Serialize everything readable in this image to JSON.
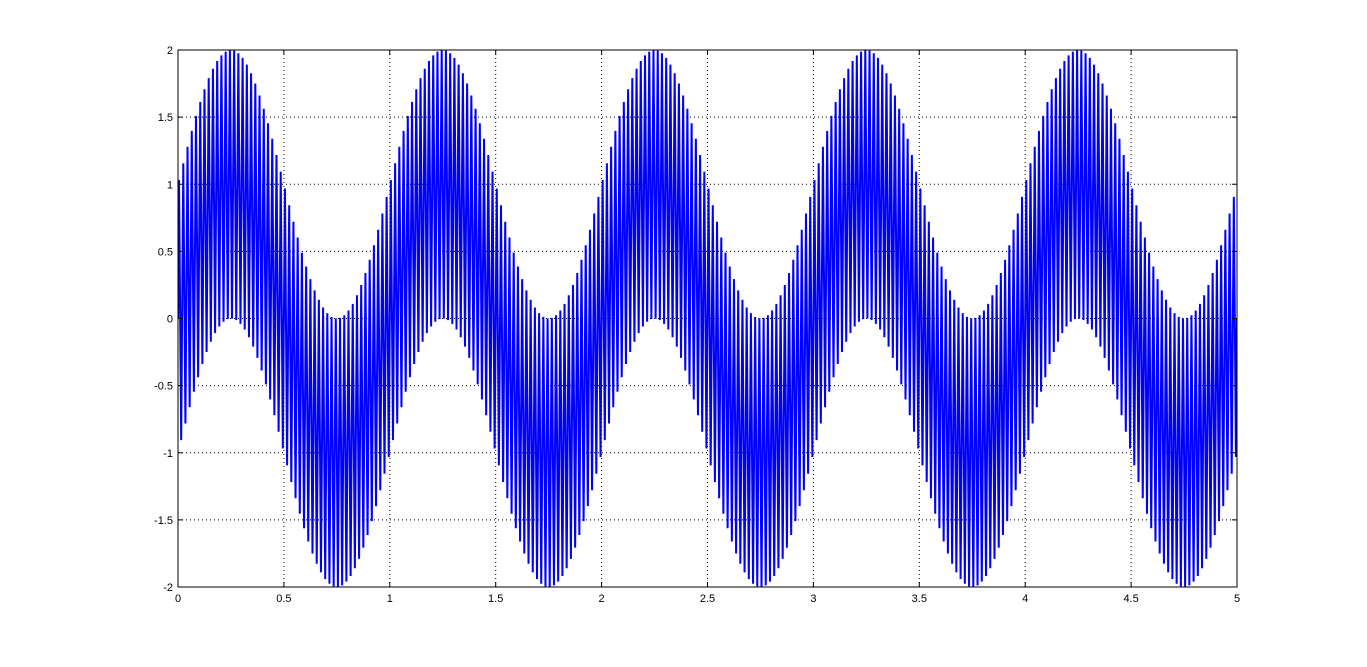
{
  "chart_data": {
    "type": "line",
    "title": "",
    "xlabel": "",
    "ylabel": "",
    "xlim": [
      0,
      5
    ],
    "ylim": [
      -2,
      2
    ],
    "grid": true,
    "grid_style": "dotted",
    "x_ticks": [
      0,
      0.5,
      1,
      1.5,
      2,
      2.5,
      3,
      3.5,
      4,
      4.5,
      5
    ],
    "x_tick_labels": [
      "0",
      "0.5",
      "1",
      "1.5",
      "2",
      "2.5",
      "3",
      "3.5",
      "4",
      "4.5",
      "5"
    ],
    "y_ticks": [
      -2,
      -1.5,
      -1,
      -0.5,
      0,
      0.5,
      1,
      1.5,
      2
    ],
    "y_tick_labels": [
      "-2",
      "-1.5",
      "-1",
      "-0.5",
      "0",
      "0.5",
      "1",
      "1.5",
      "2"
    ],
    "series": [
      {
        "color": "#0000ff",
        "description_of_signal": "sum of two unit-amplitude sine waves",
        "components": [
          {
            "amplitude": 1,
            "frequency_hz": 1
          },
          {
            "amplitude": 1,
            "frequency_hz": 50
          }
        ],
        "x_start": 0,
        "x_end": 5,
        "sample_interval": 0.005
      }
    ]
  }
}
